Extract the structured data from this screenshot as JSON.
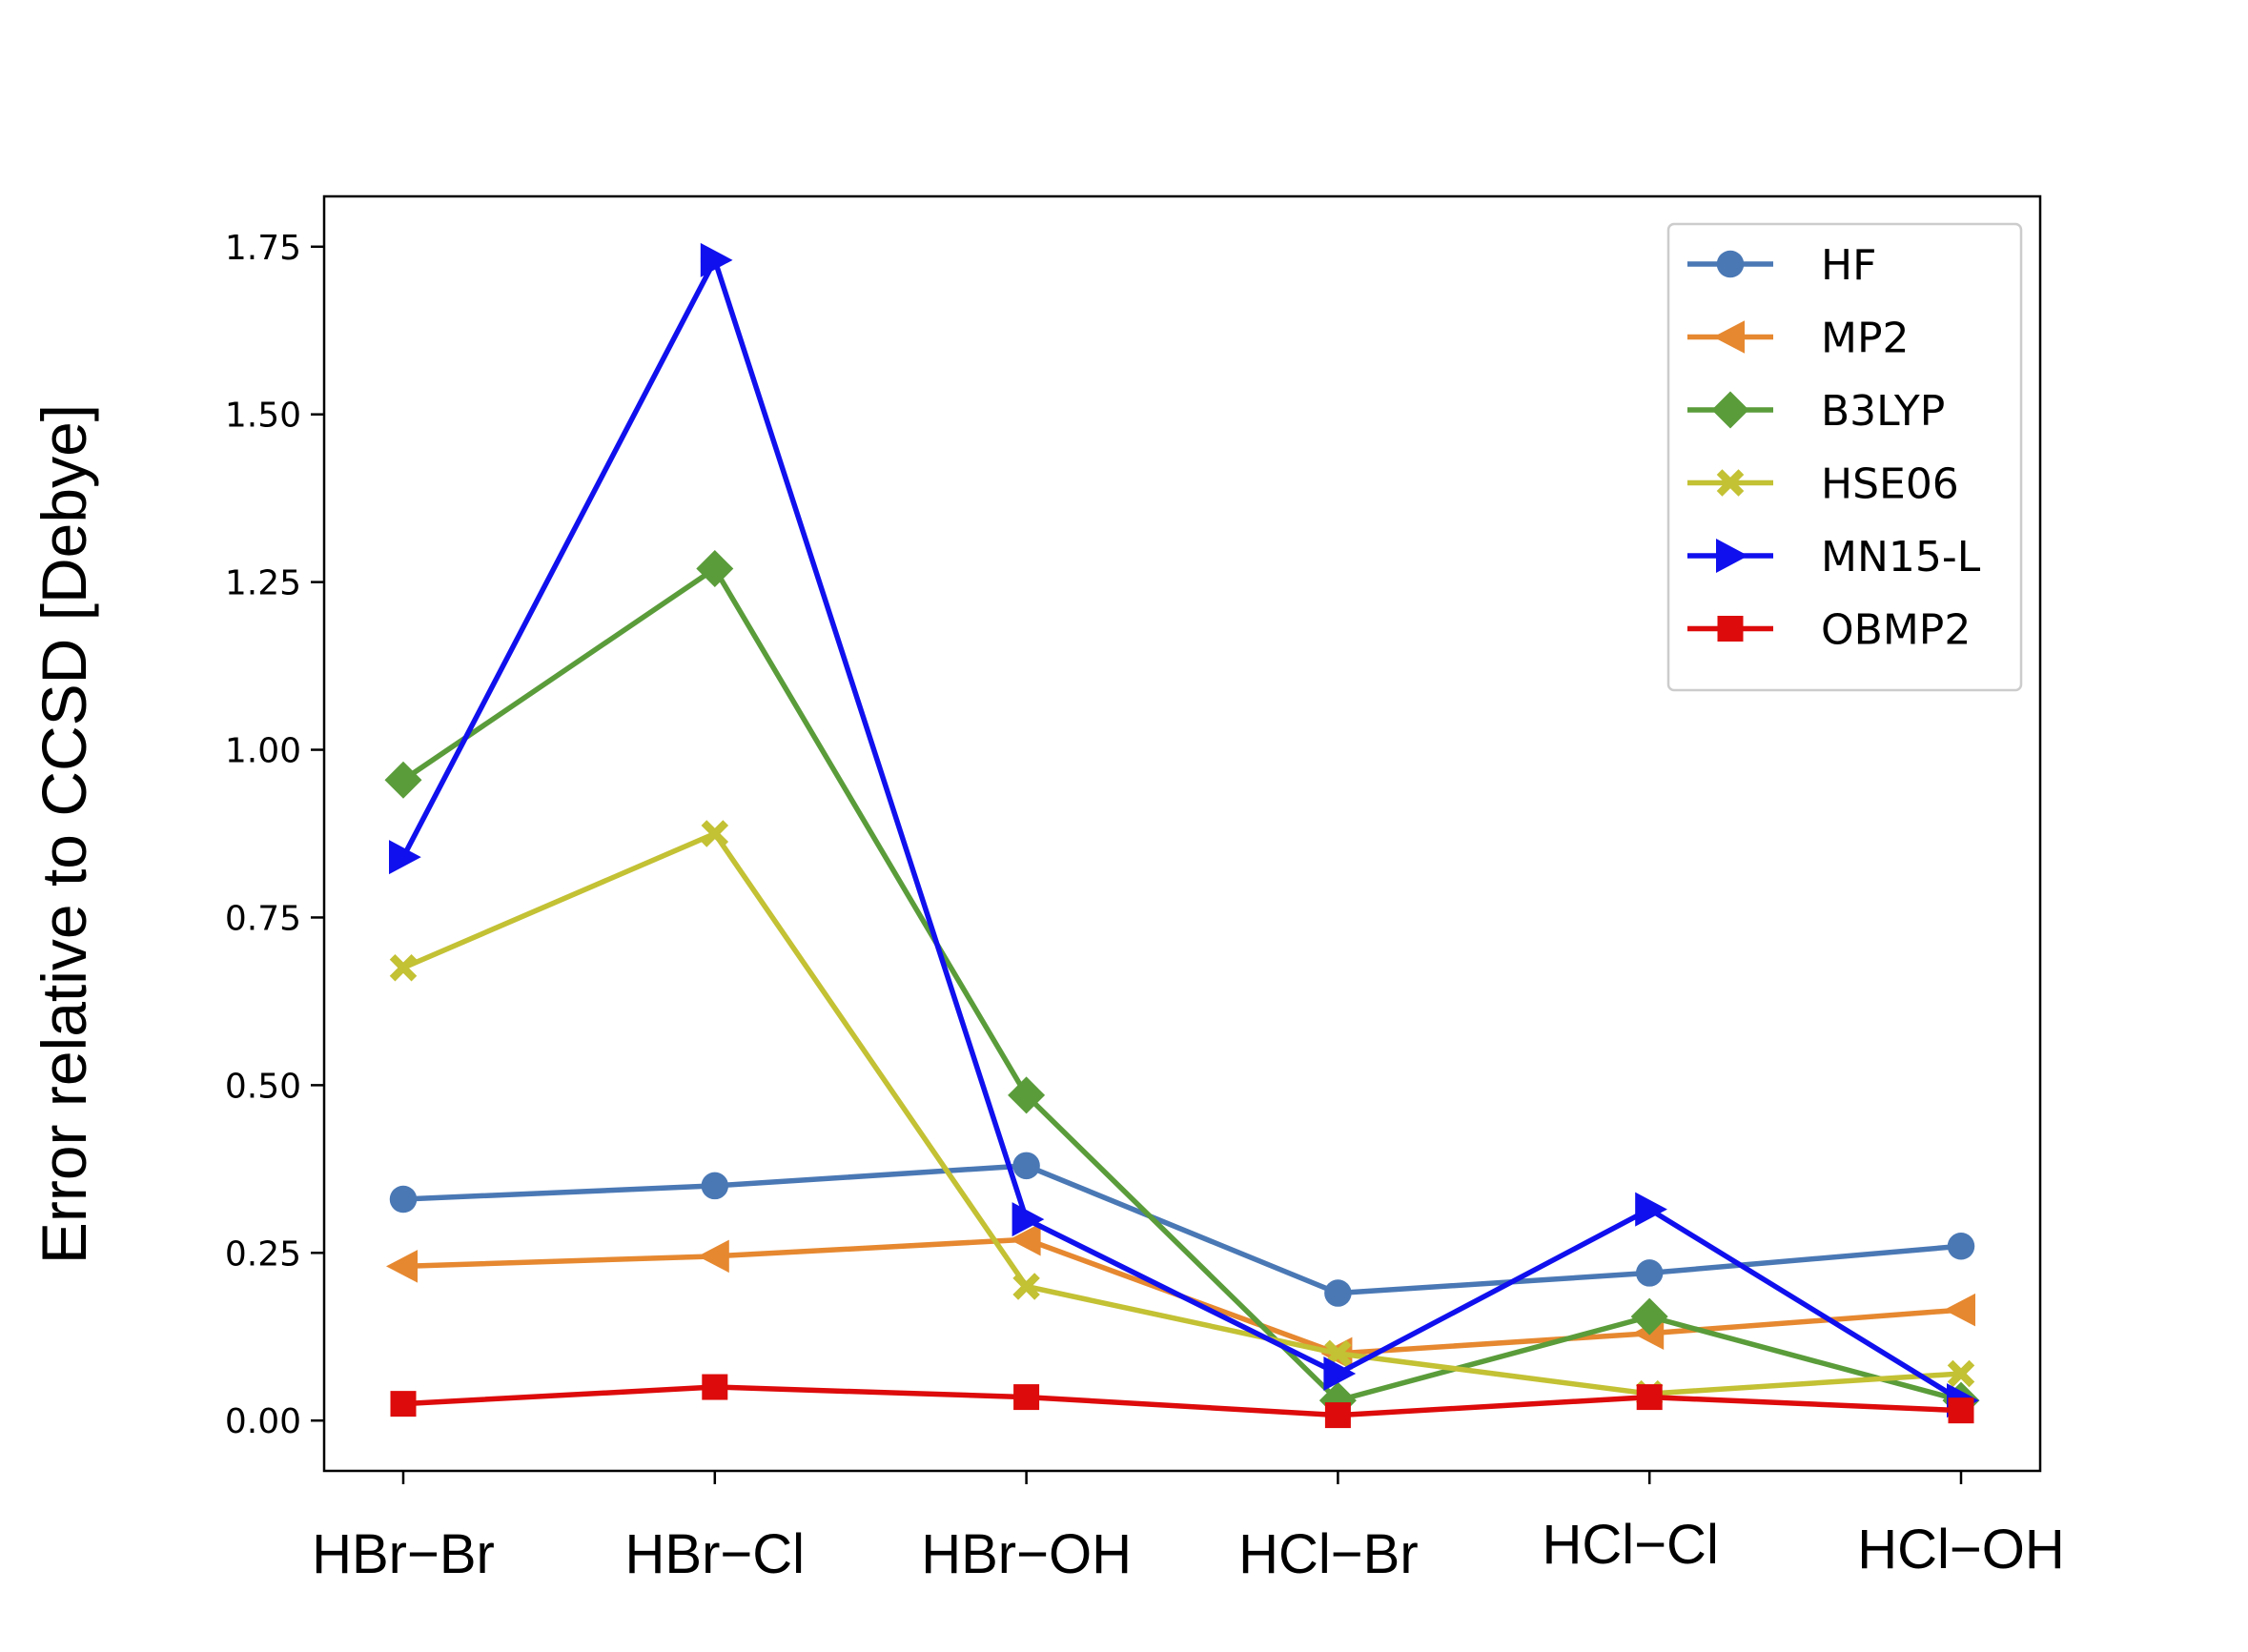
{
  "chart_data": {
    "type": "line",
    "categories": [
      "HBr−Br",
      "HBr−Cl",
      "HBr−OH",
      "HCl−Br",
      "HCl−Cl",
      "HCl−OH"
    ],
    "ylabel": "Error relative to CCSD [Debye]",
    "xlabel": "",
    "title": "",
    "ylim": [
      -0.075,
      1.825
    ],
    "yticks": [
      "0.00",
      "0.25",
      "0.50",
      "0.75",
      "1.00",
      "1.25",
      "1.50",
      "1.75"
    ],
    "legend_position": "top-right",
    "grid": false,
    "series": [
      {
        "name": "HF",
        "color": "#4a78b5",
        "marker": "circle",
        "values": [
          0.33,
          0.35,
          0.38,
          0.19,
          0.22,
          0.26
        ]
      },
      {
        "name": "MP2",
        "color": "#e68830",
        "marker": "triangle-left",
        "values": [
          0.23,
          0.245,
          0.27,
          0.1,
          0.13,
          0.165
        ]
      },
      {
        "name": "B3LYP",
        "color": "#5a9c3a",
        "marker": "diamond",
        "values": [
          0.955,
          1.27,
          0.485,
          0.03,
          0.155,
          0.03
        ]
      },
      {
        "name": "HSE06",
        "color": "#c3c134",
        "marker": "x-filled",
        "values": [
          0.675,
          0.875,
          0.2,
          0.1,
          0.04,
          0.07
        ]
      },
      {
        "name": "MN15-L",
        "color": "#1010ee",
        "marker": "triangle-right",
        "values": [
          0.84,
          1.73,
          0.3,
          0.07,
          0.315,
          0.03
        ]
      },
      {
        "name": "OBMP2",
        "color": "#dd0b0b",
        "marker": "square",
        "values": [
          0.025,
          0.05,
          0.035,
          0.008,
          0.035,
          0.015
        ]
      }
    ]
  }
}
